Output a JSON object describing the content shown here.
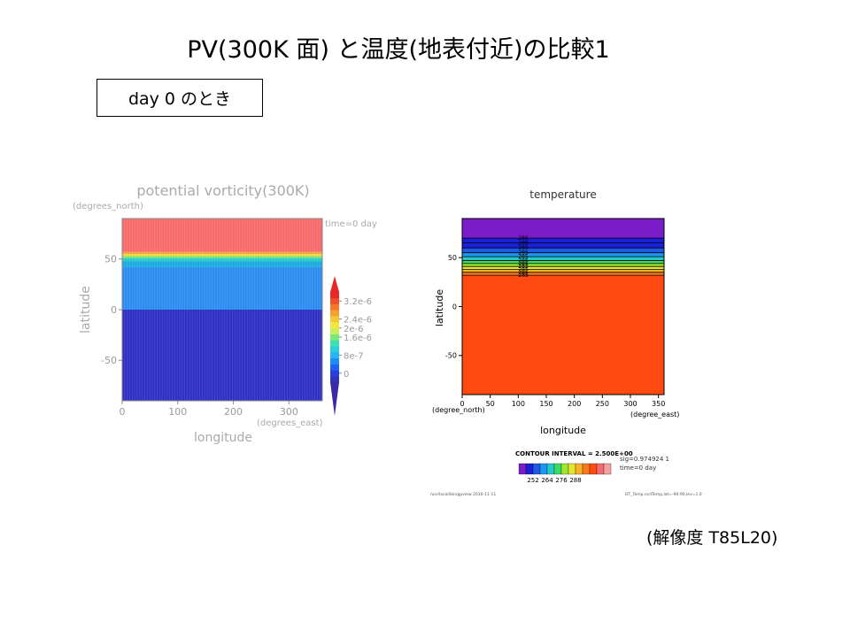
{
  "slide": {
    "title": "PV(300K 面) と温度(地表付近)の比較1",
    "day_label": "day 0 のとき",
    "resolution_note": "(解像度 T85L20)"
  },
  "chart_data": [
    {
      "type": "heatmap",
      "title": "potential vorticity(300K)",
      "xlabel": "longitude",
      "ylabel": "latitude",
      "x_units": "(degrees_east)",
      "y_units": "(degrees_north)",
      "annotation": "time=0 day",
      "xlim": [
        0,
        360
      ],
      "ylim": [
        -90,
        90
      ],
      "x_ticks": [
        0,
        100,
        200,
        300
      ],
      "y_ticks": [
        -50,
        0,
        50
      ],
      "bands": [
        {
          "lat_min": -90,
          "lat_max": 0,
          "color": "#2e2ec4"
        },
        {
          "lat_min": 0,
          "lat_max": 42,
          "color": "#2b8cf0"
        },
        {
          "lat_min": 42,
          "lat_max": 48,
          "color": "#1aaadf"
        },
        {
          "lat_min": 48,
          "lat_max": 51,
          "color": "#22d0c8"
        },
        {
          "lat_min": 51,
          "lat_max": 53,
          "color": "#7fe06a"
        },
        {
          "lat_min": 53,
          "lat_max": 55,
          "color": "#f2d63a"
        },
        {
          "lat_min": 55,
          "lat_max": 57,
          "color": "#f6a238"
        },
        {
          "lat_min": 57,
          "lat_max": 90,
          "color": "#f86a6a"
        }
      ],
      "colorbar": {
        "colors": [
          "#3232b4",
          "#2a3ee0",
          "#1e64f0",
          "#1e8cf5",
          "#28b4f0",
          "#2ccfe0",
          "#3ce0b4",
          "#78e878",
          "#c8f05a",
          "#f5e63c",
          "#f5c83c",
          "#f5a032",
          "#f57828",
          "#f05028",
          "#e82828"
        ],
        "tick_labels": [
          {
            "value": 0,
            "label": "0"
          },
          {
            "value": 8e-07,
            "label": "8e-7"
          },
          {
            "value": 1.6e-06,
            "label": "1.6e-6"
          },
          {
            "value": 2e-06,
            "label": "2e-6"
          },
          {
            "value": 2.4e-06,
            "label": "2.4e-6"
          },
          {
            "value": 3.2e-06,
            "label": "3.2e-6"
          }
        ],
        "range": [
          -4e-07,
          3.6e-06
        ]
      }
    },
    {
      "type": "heatmap",
      "title": "temperature",
      "xlabel": "longitude",
      "ylabel": "latitude",
      "x_units": "(degree_east)",
      "y_units": "(degree_north)",
      "xlim": [
        0,
        360
      ],
      "ylim": [
        -90,
        90
      ],
      "x_ticks": [
        0,
        50,
        100,
        150,
        200,
        250,
        300,
        350
      ],
      "y_ticks": [
        -50,
        0,
        50
      ],
      "bands": [
        {
          "lat_min": -90,
          "lat_max": 32,
          "color": "#ff4a12"
        },
        {
          "lat_min": 32,
          "lat_max": 35,
          "color": "#f57a1e"
        },
        {
          "lat_min": 35,
          "lat_max": 38,
          "color": "#f5b228"
        },
        {
          "lat_min": 38,
          "lat_max": 41,
          "color": "#e6e632"
        },
        {
          "lat_min": 41,
          "lat_max": 44,
          "color": "#9ee632"
        },
        {
          "lat_min": 44,
          "lat_max": 47,
          "color": "#3cdc64"
        },
        {
          "lat_min": 47,
          "lat_max": 51,
          "color": "#28c8c8"
        },
        {
          "lat_min": 51,
          "lat_max": 55,
          "color": "#1e96f0"
        },
        {
          "lat_min": 55,
          "lat_max": 60,
          "color": "#1e5ae6"
        },
        {
          "lat_min": 60,
          "lat_max": 70,
          "color": "#1a20d6"
        },
        {
          "lat_min": 70,
          "lat_max": 90,
          "color": "#7a1cc8"
        }
      ],
      "contour_lat": [
        32,
        35,
        38,
        41,
        44,
        47,
        51,
        55,
        60,
        65,
        70
      ],
      "contour_label_text": "285",
      "footer": {
        "contour_interval": "CONTOUR INTERVAL = 2.500E+00",
        "sig_text": "sig=0.974924 1",
        "time_text": "time=0 day",
        "left_path": "/usr/local/bin/gpview   2010-11-11",
        "right_path": "DT_Temp.ncdTemp,lat=-90:90,lev=1.0"
      },
      "colorbar": {
        "colors": [
          "#7a1cc8",
          "#1a20d6",
          "#1e5ae6",
          "#1e96f0",
          "#28c8c8",
          "#3cdc64",
          "#9ee632",
          "#e6e632",
          "#f5b228",
          "#f57a1e",
          "#ff4a12",
          "#f06e6e",
          "#f5a0a0"
        ],
        "tick_labels": [
          {
            "index": 1,
            "label": "252"
          },
          {
            "index": 3,
            "label": "264"
          },
          {
            "index": 5,
            "label": "276"
          },
          {
            "index": 7,
            "label": "288"
          }
        ]
      }
    }
  ]
}
